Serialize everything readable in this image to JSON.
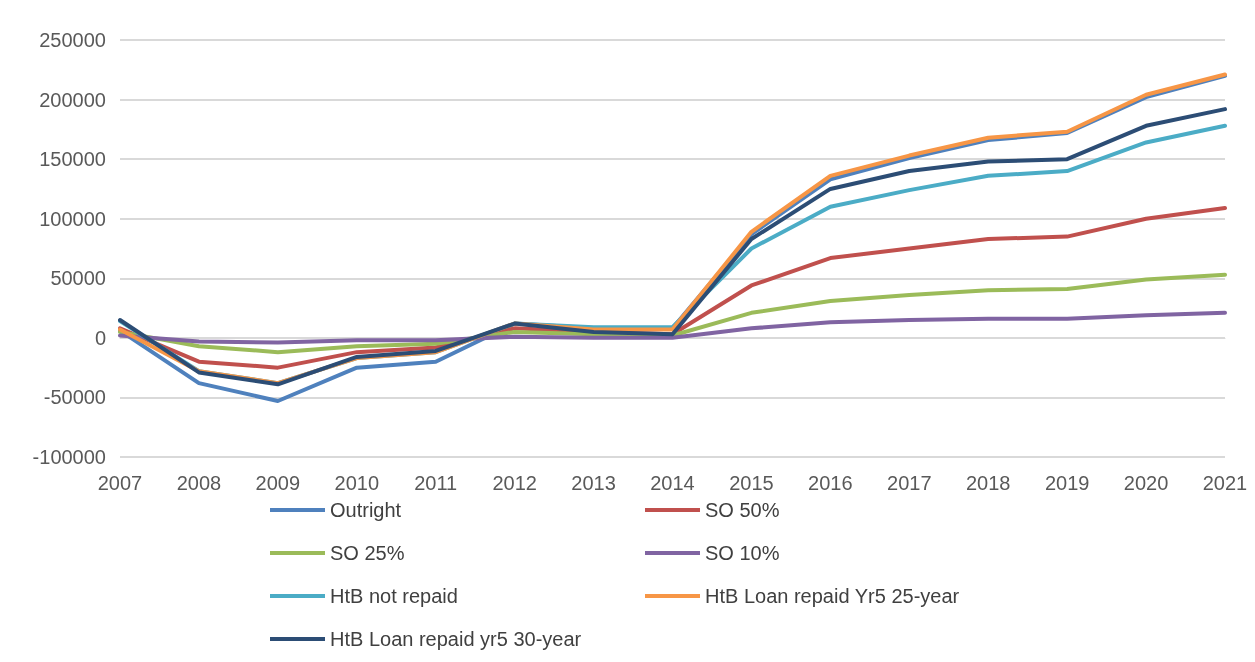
{
  "chart_data": {
    "type": "line",
    "categories": [
      "2007",
      "2008",
      "2009",
      "2010",
      "2011",
      "2012",
      "2013",
      "2014",
      "2015",
      "2016",
      "2017",
      "2018",
      "2019",
      "2020",
      "2021"
    ],
    "series": [
      {
        "name": "Outright",
        "color": "#4f81bd",
        "values": [
          6000,
          -38000,
          -53000,
          -25000,
          -20000,
          12000,
          8000,
          8000,
          87000,
          133000,
          151000,
          166000,
          172000,
          202000,
          220000
        ]
      },
      {
        "name": "SO 50%",
        "color": "#c0504d",
        "values": [
          8000,
          -20000,
          -25000,
          -12000,
          -8000,
          8000,
          5000,
          3000,
          44000,
          67000,
          75000,
          83000,
          85000,
          100000,
          109000
        ]
      },
      {
        "name": "SO 25%",
        "color": "#9bbb59",
        "values": [
          5000,
          -7000,
          -12000,
          -7000,
          -5000,
          5000,
          3000,
          2000,
          21000,
          31000,
          36000,
          40000,
          41000,
          49000,
          53000
        ]
      },
      {
        "name": "SO 10%",
        "color": "#8064a2",
        "values": [
          2000,
          -3000,
          -4000,
          -2000,
          -2000,
          1000,
          0,
          0,
          8000,
          13000,
          15000,
          16000,
          16000,
          19000,
          21000
        ]
      },
      {
        "name": "HtB not repaid",
        "color": "#4bacc6",
        "values": [
          14000,
          -28000,
          -38000,
          -17000,
          -12000,
          12000,
          9000,
          9000,
          75000,
          110000,
          124000,
          136000,
          140000,
          164000,
          178000
        ]
      },
      {
        "name": "HtB Loan repaid Yr5 25-year",
        "color": "#f79646",
        "values": [
          7000,
          -28000,
          -38000,
          -17000,
          -12000,
          12000,
          7000,
          7000,
          89000,
          136000,
          153000,
          168000,
          173000,
          204000,
          221000
        ]
      },
      {
        "name": "HtB Loan repaid yr5 30-year",
        "color": "#2c4d75",
        "values": [
          15000,
          -29000,
          -39000,
          -16000,
          -11000,
          12000,
          5000,
          3000,
          83000,
          125000,
          140000,
          148000,
          150000,
          178000,
          192000
        ]
      }
    ],
    "ylim": [
      -100000,
      250000
    ],
    "yticks": [
      -100000,
      -50000,
      0,
      50000,
      100000,
      150000,
      200000,
      250000
    ],
    "grid": "y",
    "legend": "bottom",
    "marker": "none",
    "line_style": "solid"
  }
}
